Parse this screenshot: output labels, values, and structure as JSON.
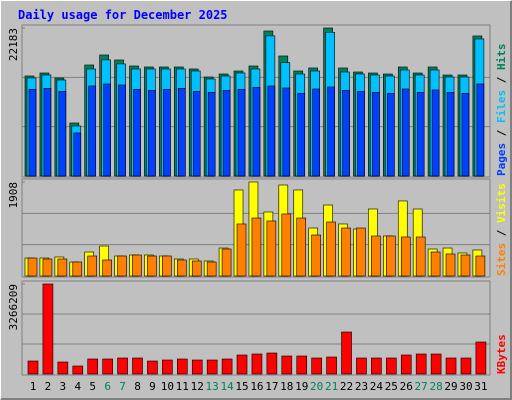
{
  "chart_data": [
    {
      "type": "bar",
      "title": "Daily usage for December 2025",
      "legend_separator": " / ",
      "ylim": [
        0,
        22183
      ],
      "yticks": [
        22183
      ],
      "series": [
        {
          "name": "Hits",
          "color": "#00805c",
          "values": [
            14990,
            15440,
            14690,
            7945,
            16640,
            18140,
            17390,
            16490,
            16340,
            16340,
            16340,
            16040,
            14840,
            15290,
            15740,
            16490,
            21735,
            17990,
            15740,
            16190,
            22183,
            16190,
            15590,
            15440,
            15290,
            16340,
            15440,
            16340,
            15140,
            15140,
            20990
          ]
        },
        {
          "name": "Files",
          "color": "#00c0ff",
          "values": [
            14690,
            15140,
            14390,
            7500,
            16040,
            17400,
            16800,
            16040,
            16040,
            16040,
            16040,
            15740,
            14540,
            14990,
            15440,
            16040,
            21000,
            17000,
            15290,
            15740,
            21540,
            15590,
            15290,
            15140,
            14990,
            15890,
            15140,
            15890,
            14840,
            14840,
            20540
          ]
        },
        {
          "name": "Pages",
          "color": "#0040ff",
          "values": [
            12990,
            13140,
            12690,
            6450,
            13490,
            13790,
            13640,
            12990,
            12840,
            12990,
            13140,
            12690,
            12540,
            12840,
            12990,
            13290,
            13490,
            13190,
            12390,
            13040,
            13340,
            12840,
            12690,
            12540,
            12390,
            13040,
            12540,
            12890,
            12540,
            12390,
            13790
          ]
        }
      ]
    },
    {
      "type": "bar",
      "legend_separator": " / ",
      "ylim": [
        0,
        1908
      ],
      "yticks": [
        1908
      ],
      "series": [
        {
          "name": "Visits",
          "color": "#ffff00",
          "values": [
            365,
            365,
            386,
            284,
            487,
            609,
            406,
            426,
            426,
            406,
            345,
            345,
            305,
            568,
            1746,
            1908,
            1299,
            1847,
            1746,
            974,
            1441,
            1056,
            954,
            1360,
            812,
            1523,
            1360,
            548,
            568,
            467,
            528
          ]
        },
        {
          "name": "Sites",
          "color": "#ff8000",
          "values": [
            365,
            345,
            345,
            284,
            406,
            325,
            406,
            426,
            406,
            406,
            325,
            305,
            284,
            548,
            1056,
            1177,
            1117,
            1259,
            1177,
            832,
            1096,
            974,
            974,
            812,
            812,
            792,
            792,
            487,
            447,
            426,
            406
          ]
        }
      ]
    },
    {
      "type": "bar",
      "ylim": [
        0,
        3266209
      ],
      "yticks": [
        3266209
      ],
      "categories": [
        "1",
        "2",
        "3",
        "4",
        "5",
        "6",
        "7",
        "8",
        "9",
        "10",
        "11",
        "12",
        "13",
        "14",
        "15",
        "16",
        "17",
        "18",
        "19",
        "20",
        "21",
        "22",
        "23",
        "24",
        "25",
        "26",
        "27",
        "28",
        "29",
        "30",
        "31"
      ],
      "category_colors": [
        "#000",
        "#000",
        "#000",
        "#000",
        "#000",
        "#00805c",
        "#00805c",
        "#000",
        "#000",
        "#000",
        "#000",
        "#000",
        "#00805c",
        "#00805c",
        "#000",
        "#000",
        "#000",
        "#000",
        "#000",
        "#00805c",
        "#00805c",
        "#000",
        "#000",
        "#000",
        "#000",
        "#000",
        "#00805c",
        "#00805c",
        "#000",
        "#000",
        "#000"
      ],
      "series": [
        {
          "name": "KBytes",
          "color": "#ff0000",
          "values": [
            471800,
            3266209,
            435500,
            290300,
            544400,
            544400,
            580700,
            580700,
            471800,
            508100,
            544400,
            508100,
            508100,
            544400,
            689500,
            725800,
            762100,
            653200,
            653200,
            580700,
            617000,
            1524200,
            580700,
            580700,
            580700,
            689500,
            725800,
            725800,
            580700,
            580700,
            1161300
          ]
        }
      ]
    }
  ]
}
